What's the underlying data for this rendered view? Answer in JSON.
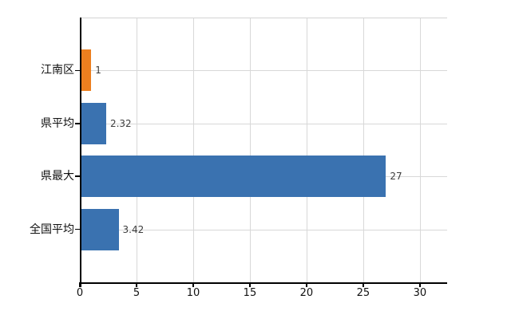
{
  "chart_data": {
    "type": "bar",
    "orientation": "horizontal",
    "title": "",
    "xlabel": "",
    "ylabel": "",
    "categories": [
      "江南区",
      "県平均",
      "県最大",
      "全国平均"
    ],
    "values": [
      1,
      2.32,
      27,
      3.42
    ],
    "value_labels": [
      "1",
      "2.32",
      "27",
      "3.42"
    ],
    "bar_colors": [
      "#ec7f1f",
      "#3a72b0",
      "#3a72b0",
      "#3a72b0"
    ],
    "highlight_color": "#ec7f1f",
    "default_bar_color": "#3a72b0",
    "xlim": [
      0,
      32.4
    ],
    "xtick_values": [
      0,
      5,
      10,
      15,
      20,
      25,
      30
    ],
    "xtick_labels": [
      "0",
      "5",
      "10",
      "15",
      "20",
      "25",
      "30"
    ],
    "grid": true,
    "gridline_color": "#d8d8d8",
    "axis_color": "#000000",
    "legend": "none",
    "background_color": "#ffffff"
  }
}
